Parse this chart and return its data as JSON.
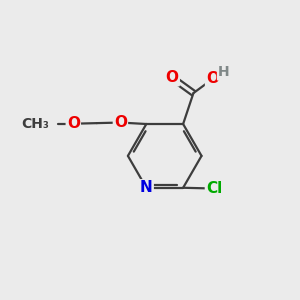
{
  "background_color": "#ebebeb",
  "atom_colors": {
    "C": "#3d3d3d",
    "N": "#0000e0",
    "O": "#ee0000",
    "Cl": "#00aa00",
    "H": "#808888"
  },
  "bond_color": "#3d3d3d",
  "bond_width": 1.6,
  "font_size": 11,
  "figsize": [
    3.0,
    3.0
  ],
  "dpi": 100
}
